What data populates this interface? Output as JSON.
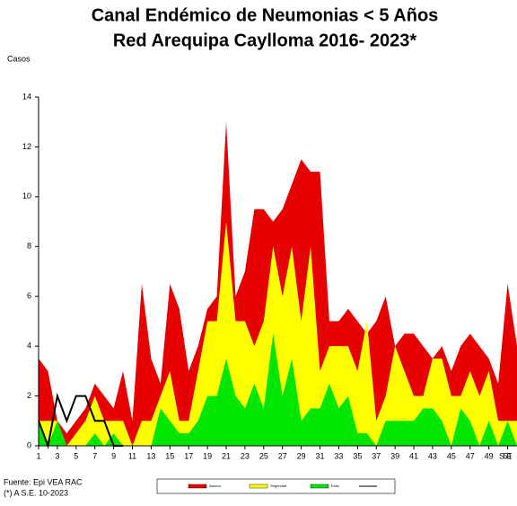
{
  "chart_data": {
    "type": "area",
    "title": "Canal Endémico de Neumonias < 5 Años",
    "subtitle": "Red Arequipa Caylloma 2016- 2023*",
    "ylabel": "Casos",
    "xlabel": "S.E",
    "notes": [
      "Fuente: Epi VEA RAC",
      "(*) A S.E. 10-2023"
    ],
    "x": [
      1,
      2,
      3,
      4,
      5,
      6,
      7,
      8,
      9,
      10,
      11,
      12,
      13,
      14,
      15,
      16,
      17,
      18,
      19,
      20,
      21,
      22,
      23,
      24,
      25,
      26,
      27,
      28,
      29,
      30,
      31,
      32,
      33,
      34,
      35,
      36,
      37,
      38,
      39,
      40,
      41,
      42,
      43,
      44,
      45,
      46,
      47,
      48,
      49,
      50,
      51,
      52
    ],
    "xlim": [
      1,
      52
    ],
    "xticks": [
      1,
      3,
      5,
      7,
      9,
      11,
      13,
      15,
      17,
      19,
      21,
      23,
      25,
      27,
      29,
      31,
      33,
      35,
      37,
      39,
      41,
      43,
      45,
      47,
      49,
      51
    ],
    "ylim": [
      0,
      14
    ],
    "yticks": [
      0,
      2,
      4,
      6,
      8,
      10,
      12,
      14
    ],
    "series": [
      {
        "name": "Alarma",
        "color": "#e60000",
        "values": [
          3.5,
          3,
          1,
          0.5,
          1,
          1.5,
          2.5,
          2,
          1.5,
          3,
          1,
          6.5,
          3.5,
          2.5,
          6.5,
          5.5,
          3,
          4,
          5.5,
          6,
          13,
          6,
          7,
          9.5,
          9.5,
          9,
          9.5,
          10.5,
          11.5,
          11,
          11,
          5,
          5,
          5.5,
          5,
          4.5,
          5,
          6,
          4,
          4.5,
          4.5,
          4,
          3.5,
          4,
          3,
          4,
          4.5,
          4,
          3.5,
          2.5,
          6.5,
          4
        ]
      },
      {
        "name": "Seguridad",
        "color": "#ffff00",
        "values": [
          1,
          1,
          1,
          0,
          0.5,
          1,
          2,
          1,
          1,
          1,
          0,
          1,
          1,
          2,
          3,
          1,
          1,
          3,
          5,
          5,
          9,
          5,
          5,
          4,
          5,
          8,
          6,
          8,
          5,
          8,
          3,
          4,
          4,
          4,
          3,
          5,
          1,
          2,
          4,
          3,
          2,
          2,
          3.5,
          3.5,
          2,
          2,
          3,
          2,
          3,
          1,
          1,
          1
        ]
      },
      {
        "name": "Exito",
        "color": "#00e600",
        "values": [
          1,
          0,
          1,
          0,
          0,
          0,
          0.5,
          0,
          0.5,
          0,
          0,
          0,
          0,
          1.5,
          1,
          0.5,
          0.5,
          1,
          2,
          2,
          3.5,
          2,
          1.5,
          2.5,
          1.5,
          4.5,
          2,
          3.5,
          1,
          1.5,
          1.5,
          2.5,
          1.5,
          2,
          0.5,
          0.5,
          0,
          1,
          1,
          1,
          1,
          1.5,
          1.5,
          1,
          0,
          1.5,
          1,
          0,
          1,
          0,
          1,
          0
        ]
      },
      {
        "type": "line",
        "color": "#000000",
        "values": [
          1,
          0,
          2,
          1,
          2,
          2,
          1,
          1,
          0,
          0,
          null,
          null,
          null,
          null,
          null,
          null,
          null,
          null,
          null,
          null,
          null,
          null,
          null,
          null,
          null,
          null,
          null,
          null,
          null,
          null,
          null,
          null,
          null,
          null,
          null,
          null,
          null,
          null,
          null,
          null,
          null,
          null,
          null,
          null,
          null,
          null,
          null,
          null,
          null,
          null,
          null,
          null
        ]
      }
    ]
  }
}
